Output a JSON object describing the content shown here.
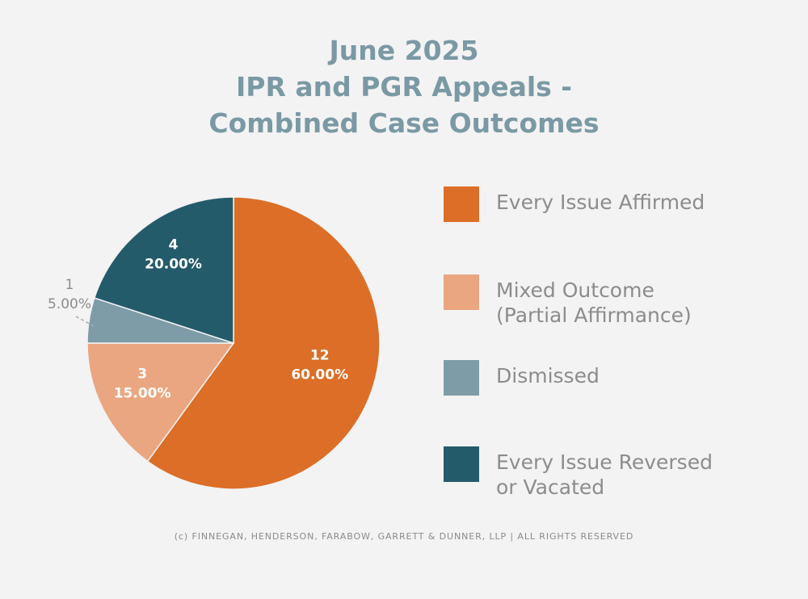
{
  "chart_data": {
    "type": "pie",
    "title": [
      "June 2025",
      "IPR and PGR Appeals -",
      "Combined Case Outcomes"
    ],
    "start": "top",
    "direction": "clockwise",
    "slices": [
      {
        "name": "Every Issue Affirmed",
        "value": 12,
        "percent_label": "60.00%",
        "color": "#dc6e27",
        "label_color": "#ffffff"
      },
      {
        "name": "Mixed Outcome\n(Partial Affirmance)",
        "value": 3,
        "percent_label": "15.00%",
        "color": "#eaa680",
        "label_color": "#ffffff"
      },
      {
        "name": "Dismissed",
        "value": 1,
        "percent_label": "5.00%",
        "color": "#7d9ca8",
        "label_color": "#8c8c8c",
        "label_outside": true
      },
      {
        "name": "Every Issue Reversed\nor Vacated",
        "value": 4,
        "percent_label": "20.00%",
        "color": "#245b6b",
        "label_color": "#ffffff"
      }
    ],
    "legend_position": "right"
  },
  "footer": "(c) FINNEGAN, HENDERSON, FARABOW, GARRETT & DUNNER, LLP | ALL RIGHTS RESERVED"
}
